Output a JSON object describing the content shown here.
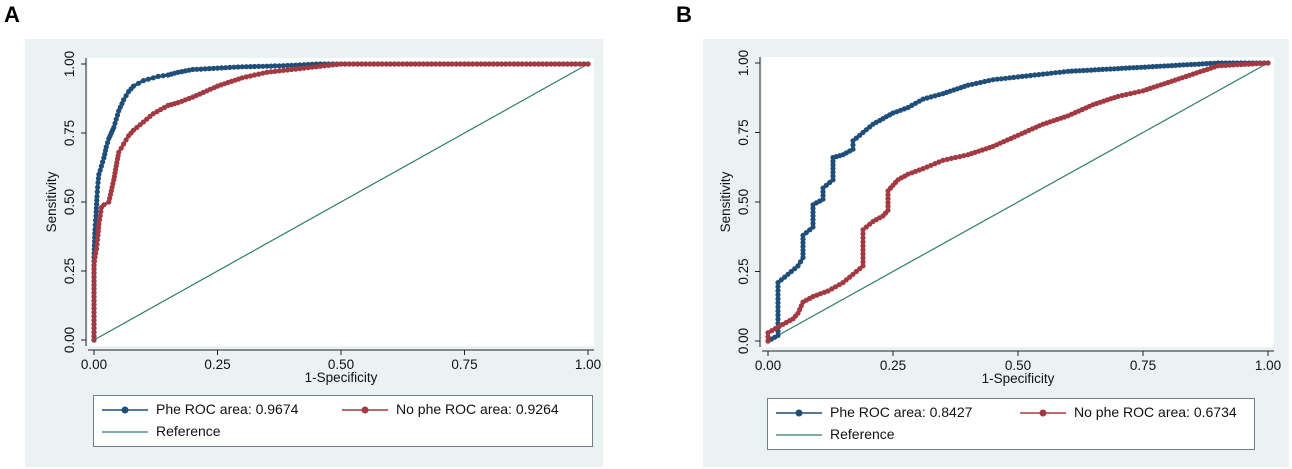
{
  "panels": [
    {
      "letter": "A",
      "chart_data": {
        "type": "line",
        "title": "",
        "xlabel": "1-Specificity",
        "ylabel": "Sensitivity",
        "xlim": [
          0,
          1
        ],
        "ylim": [
          0,
          1
        ],
        "xticks": [
          "0.00",
          "0.25",
          "0.50",
          "0.75",
          "1.00"
        ],
        "yticks": [
          "0.00",
          "0.25",
          "0.50",
          "0.75",
          "1.00"
        ],
        "series": [
          {
            "name": "Phe ROC area: 0.9674",
            "color": "#1f4e79",
            "x": [
              0,
              0,
              0.002,
              0.004,
              0.006,
              0.008,
              0.01,
              0.015,
              0.02,
              0.025,
              0.03,
              0.035,
              0.04,
              0.05,
              0.06,
              0.07,
              0.08,
              0.09,
              0.1,
              0.11,
              0.12,
              0.13,
              0.15,
              0.17,
              0.2,
              0.25,
              0.3,
              0.35,
              0.4,
              0.45,
              0.5,
              0.6,
              0.7,
              0.8,
              0.9,
              1.0
            ],
            "y": [
              0,
              0.3,
              0.4,
              0.45,
              0.52,
              0.57,
              0.6,
              0.63,
              0.66,
              0.7,
              0.73,
              0.75,
              0.77,
              0.83,
              0.87,
              0.9,
              0.92,
              0.93,
              0.94,
              0.945,
              0.95,
              0.955,
              0.96,
              0.97,
              0.98,
              0.985,
              0.99,
              0.992,
              0.995,
              1.0,
              1.0,
              1.0,
              1.0,
              1.0,
              1.0,
              1.0
            ]
          },
          {
            "name": "No phe ROC area: 0.9264",
            "color": "#a33a42",
            "x": [
              0,
              0,
              0.002,
              0.005,
              0.008,
              0.01,
              0.015,
              0.02,
              0.03,
              0.04,
              0.045,
              0.05,
              0.06,
              0.07,
              0.08,
              0.1,
              0.12,
              0.15,
              0.17,
              0.2,
              0.25,
              0.3,
              0.35,
              0.4,
              0.45,
              0.5,
              0.6,
              0.7,
              0.8,
              0.9,
              1.0
            ],
            "y": [
              0,
              0.27,
              0.3,
              0.33,
              0.38,
              0.42,
              0.48,
              0.49,
              0.5,
              0.58,
              0.63,
              0.68,
              0.71,
              0.74,
              0.76,
              0.79,
              0.82,
              0.85,
              0.86,
              0.88,
              0.92,
              0.95,
              0.97,
              0.98,
              0.99,
              1.0,
              1.0,
              1.0,
              1.0,
              1.0,
              1.0
            ]
          }
        ],
        "reference": {
          "name": "Reference",
          "color": "#2e7d6b",
          "x": [
            0,
            1
          ],
          "y": [
            0,
            1
          ]
        }
      }
    },
    {
      "letter": "B",
      "chart_data": {
        "type": "line",
        "title": "",
        "xlabel": "1-Specificity",
        "ylabel": "Sensitivity",
        "xlim": [
          0,
          1
        ],
        "ylim": [
          0,
          1
        ],
        "xticks": [
          "0.00",
          "0.25",
          "0.50",
          "0.75",
          "1.00"
        ],
        "yticks": [
          "0.00",
          "0.25",
          "0.50",
          "0.75",
          "1.00"
        ],
        "series": [
          {
            "name": "Phe ROC area: 0.8427",
            "color": "#1f4e79",
            "x": [
              0,
              0.02,
              0.02,
              0.04,
              0.06,
              0.07,
              0.07,
              0.09,
              0.09,
              0.11,
              0.11,
              0.13,
              0.13,
              0.15,
              0.17,
              0.17,
              0.19,
              0.21,
              0.23,
              0.25,
              0.28,
              0.31,
              0.35,
              0.4,
              0.45,
              0.5,
              0.55,
              0.6,
              0.7,
              0.8,
              0.9,
              1.0
            ],
            "y": [
              0,
              0.02,
              0.21,
              0.24,
              0.27,
              0.3,
              0.38,
              0.41,
              0.49,
              0.51,
              0.55,
              0.58,
              0.66,
              0.67,
              0.69,
              0.72,
              0.75,
              0.78,
              0.8,
              0.82,
              0.84,
              0.87,
              0.89,
              0.92,
              0.94,
              0.95,
              0.96,
              0.97,
              0.98,
              0.99,
              1.0,
              1.0
            ]
          },
          {
            "name": "No phe ROC area: 0.6734",
            "color": "#a33a42",
            "x": [
              0,
              0,
              0.03,
              0.05,
              0.06,
              0.07,
              0.09,
              0.12,
              0.15,
              0.17,
              0.19,
              0.19,
              0.21,
              0.23,
              0.24,
              0.24,
              0.26,
              0.28,
              0.31,
              0.35,
              0.4,
              0.45,
              0.5,
              0.55,
              0.6,
              0.65,
              0.7,
              0.75,
              0.8,
              0.85,
              0.9,
              1.0
            ],
            "y": [
              0,
              0.03,
              0.06,
              0.08,
              0.1,
              0.14,
              0.16,
              0.18,
              0.21,
              0.24,
              0.27,
              0.4,
              0.43,
              0.45,
              0.47,
              0.54,
              0.58,
              0.6,
              0.62,
              0.65,
              0.67,
              0.7,
              0.74,
              0.78,
              0.81,
              0.85,
              0.88,
              0.9,
              0.93,
              0.96,
              0.99,
              1.0
            ]
          }
        ],
        "reference": {
          "name": "Reference",
          "color": "#2e7d6b",
          "x": [
            0,
            1
          ],
          "y": [
            0,
            1
          ]
        }
      }
    }
  ]
}
